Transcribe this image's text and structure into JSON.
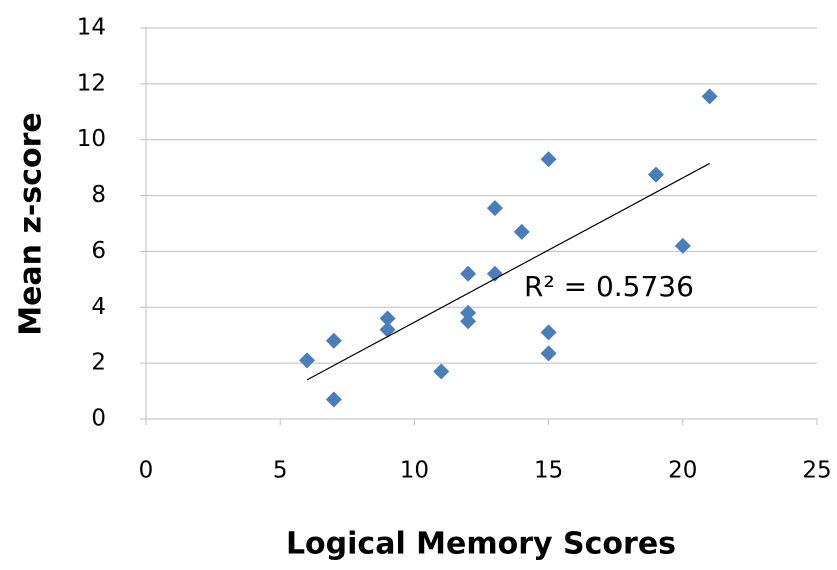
{
  "chart_data": {
    "type": "scatter",
    "xlabel": "Logical Memory Scores",
    "ylabel": "Mean z-score",
    "annotation": "R² = 0.5736",
    "series": [
      {
        "color": "#4a7ebb",
        "x": [
          6,
          7,
          7,
          9,
          9,
          11,
          12,
          12,
          12,
          13,
          13,
          14,
          15,
          15,
          15,
          19,
          20,
          21
        ],
        "values": [
          2.1,
          2.8,
          0.7,
          3.6,
          3.2,
          1.7,
          5.2,
          3.8,
          3.5,
          7.55,
          5.2,
          6.7,
          9.3,
          3.1,
          2.35,
          8.75,
          6.2,
          11.55
        ]
      }
    ],
    "trendline": {
      "x": [
        6,
        21
      ],
      "values": [
        1.4,
        9.15
      ]
    },
    "xlim": [
      0,
      25
    ],
    "xticks": [
      0,
      5,
      10,
      15,
      20,
      25
    ],
    "ylim": [
      0,
      14
    ],
    "yticks": [
      0,
      2,
      4,
      6,
      8,
      10,
      12,
      14
    ],
    "grid": true
  }
}
